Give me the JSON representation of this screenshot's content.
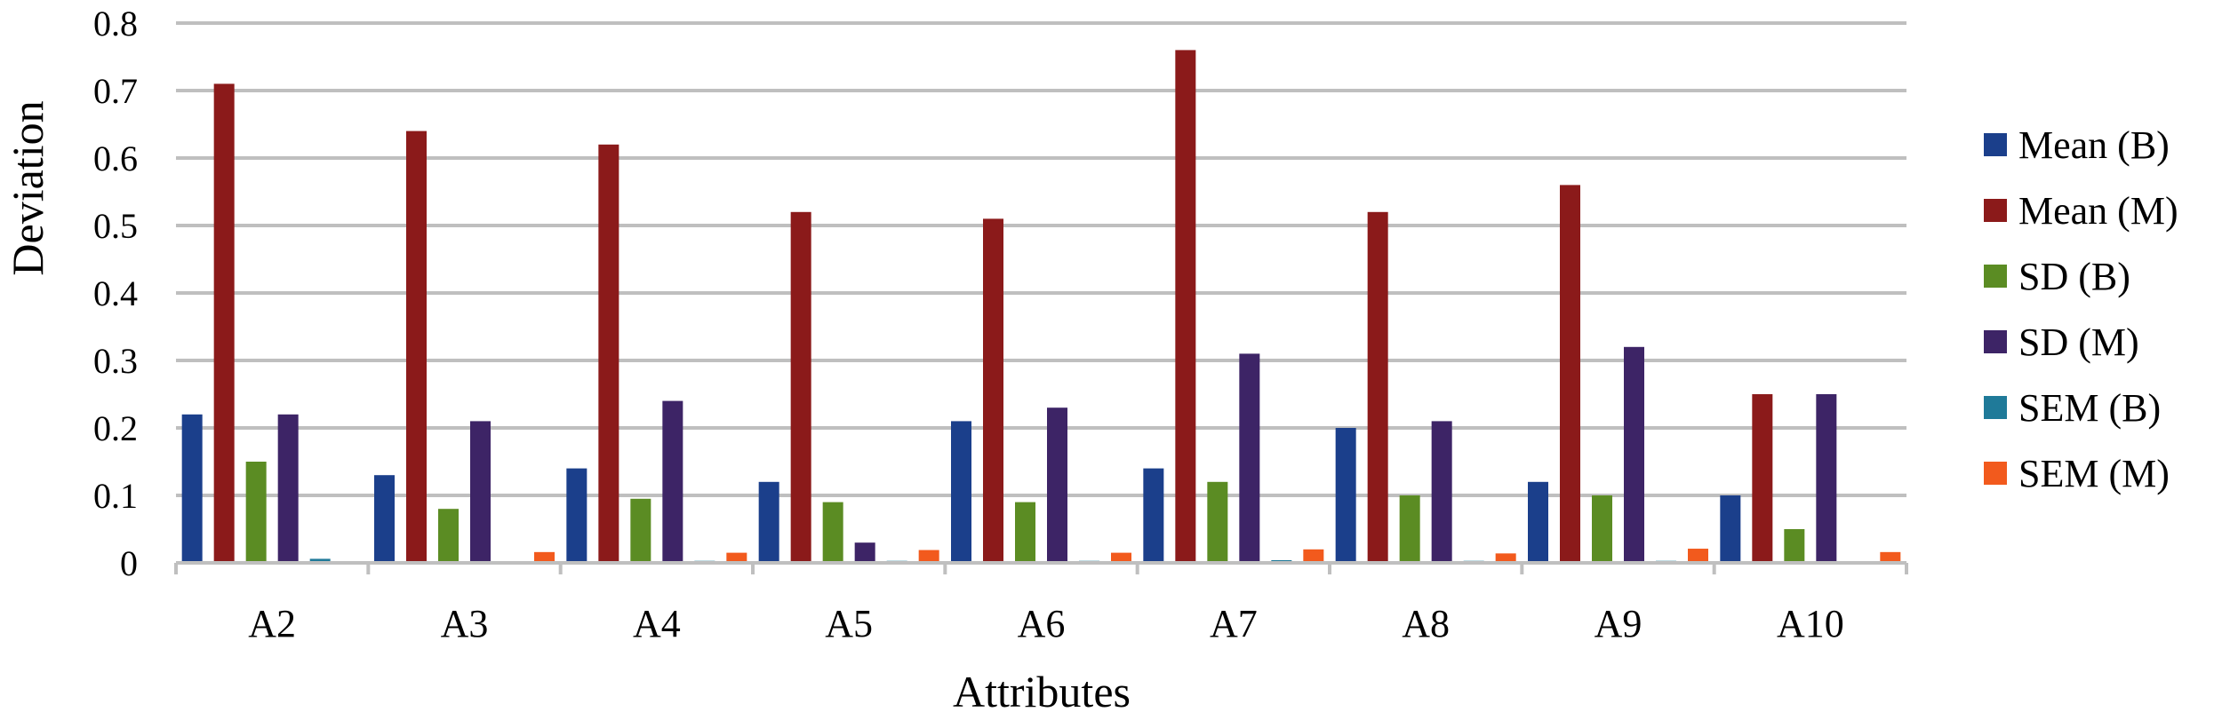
{
  "chart_data": {
    "type": "bar",
    "xlabel": "Attributes",
    "ylabel": "Deviation",
    "ylim": [
      0,
      0.8
    ],
    "yticks": [
      0,
      0.1,
      0.2,
      0.3,
      0.4,
      0.5,
      0.6,
      0.7,
      0.8
    ],
    "grid": true,
    "legend_position": "right",
    "categories": [
      "A2",
      "A3",
      "A4",
      "A5",
      "A6",
      "A7",
      "A8",
      "A9",
      "A10"
    ],
    "series": [
      {
        "name": "Mean (B)",
        "color": "#1B3F8B",
        "values": [
          0.22,
          0.13,
          0.14,
          0.12,
          0.21,
          0.14,
          0.2,
          0.12,
          0.1
        ]
      },
      {
        "name": "Mean (M)",
        "color": "#8B1A1A",
        "values": [
          0.71,
          0.64,
          0.62,
          0.52,
          0.51,
          0.76,
          0.52,
          0.56,
          0.25
        ]
      },
      {
        "name": "SD (B)",
        "color": "#5B8C23",
        "values": [
          0.15,
          0.08,
          0.095,
          0.09,
          0.09,
          0.12,
          0.1,
          0.1,
          0.05
        ]
      },
      {
        "name": "SD (M)",
        "color": "#3D2466",
        "values": [
          0.22,
          0.21,
          0.24,
          0.03,
          0.23,
          0.31,
          0.21,
          0.32,
          0.25
        ]
      },
      {
        "name": "SEM (B)",
        "color": "#1F7A99",
        "values": [
          0.006,
          0.002,
          0.003,
          0.003,
          0.003,
          0.004,
          0.003,
          0.003,
          0.002
        ]
      },
      {
        "name": "SEM (M)",
        "color": "#F25A1D",
        "values": [
          0.0,
          0.016,
          0.015,
          0.019,
          0.015,
          0.02,
          0.014,
          0.021,
          0.016
        ]
      }
    ]
  }
}
